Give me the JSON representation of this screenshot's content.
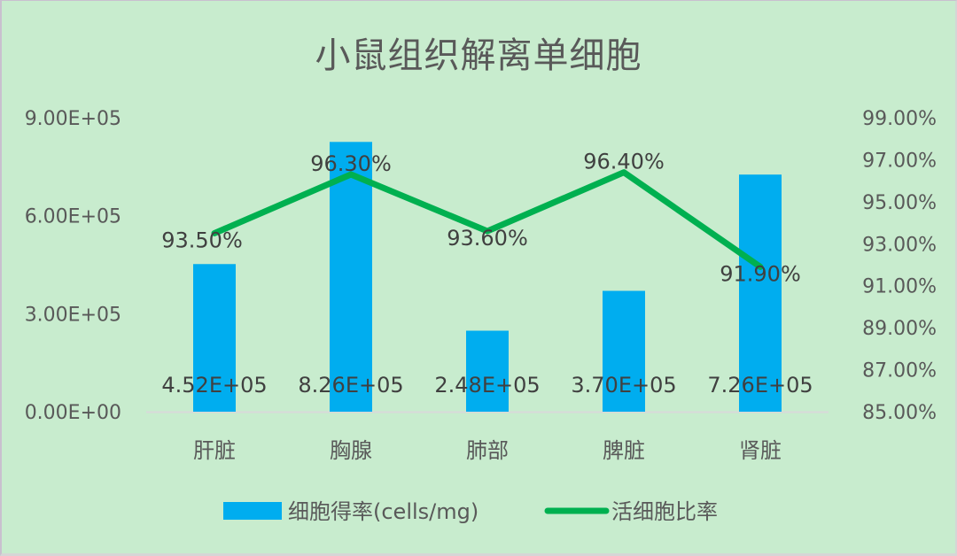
{
  "chart": {
    "title": "小鼠组织解离单细胞",
    "background": "#c8ecce",
    "bar_color": "#00adef",
    "line_color": "#00b050",
    "legend": [
      {
        "label": "细胞得率(cells/mg)",
        "type": "bar"
      },
      {
        "label": "活细胞比率",
        "type": "line"
      }
    ],
    "left_axis_ticks": [
      "0.00E+00",
      "3.00E+05",
      "6.00E+05",
      "9.00E+05"
    ],
    "right_axis_ticks": [
      "85.00%",
      "87.00%",
      "89.00%",
      "91.00%",
      "93.00%",
      "95.00%",
      "97.00%",
      "99.00%"
    ]
  },
  "chart_data": {
    "type": "bar+line",
    "title": "小鼠组织解离单细胞",
    "categories": [
      "肝脏",
      "胸腺",
      "肺部",
      "脾脏",
      "肾脏"
    ],
    "series": [
      {
        "name": "细胞得率(cells/mg)",
        "type": "bar",
        "axis": "left",
        "values": [
          452000,
          826000,
          248000,
          370000,
          726000
        ],
        "labels": [
          "4.52E+05",
          "8.26E+05",
          "2.48E+05",
          "3.70E+05",
          "7.26E+05"
        ]
      },
      {
        "name": "活细胞比率",
        "type": "line",
        "axis": "right",
        "values": [
          93.5,
          96.3,
          93.6,
          96.4,
          91.9
        ],
        "labels": [
          "93.50%",
          "96.30%",
          "93.60%",
          "96.40%",
          "91.90%"
        ]
      }
    ],
    "xlabel": "",
    "ylabel_left": "",
    "ylabel_right": "",
    "ylim_left": [
      0,
      900000
    ],
    "ylim_right": [
      85,
      99
    ],
    "grid": false,
    "legend_position": "bottom"
  }
}
